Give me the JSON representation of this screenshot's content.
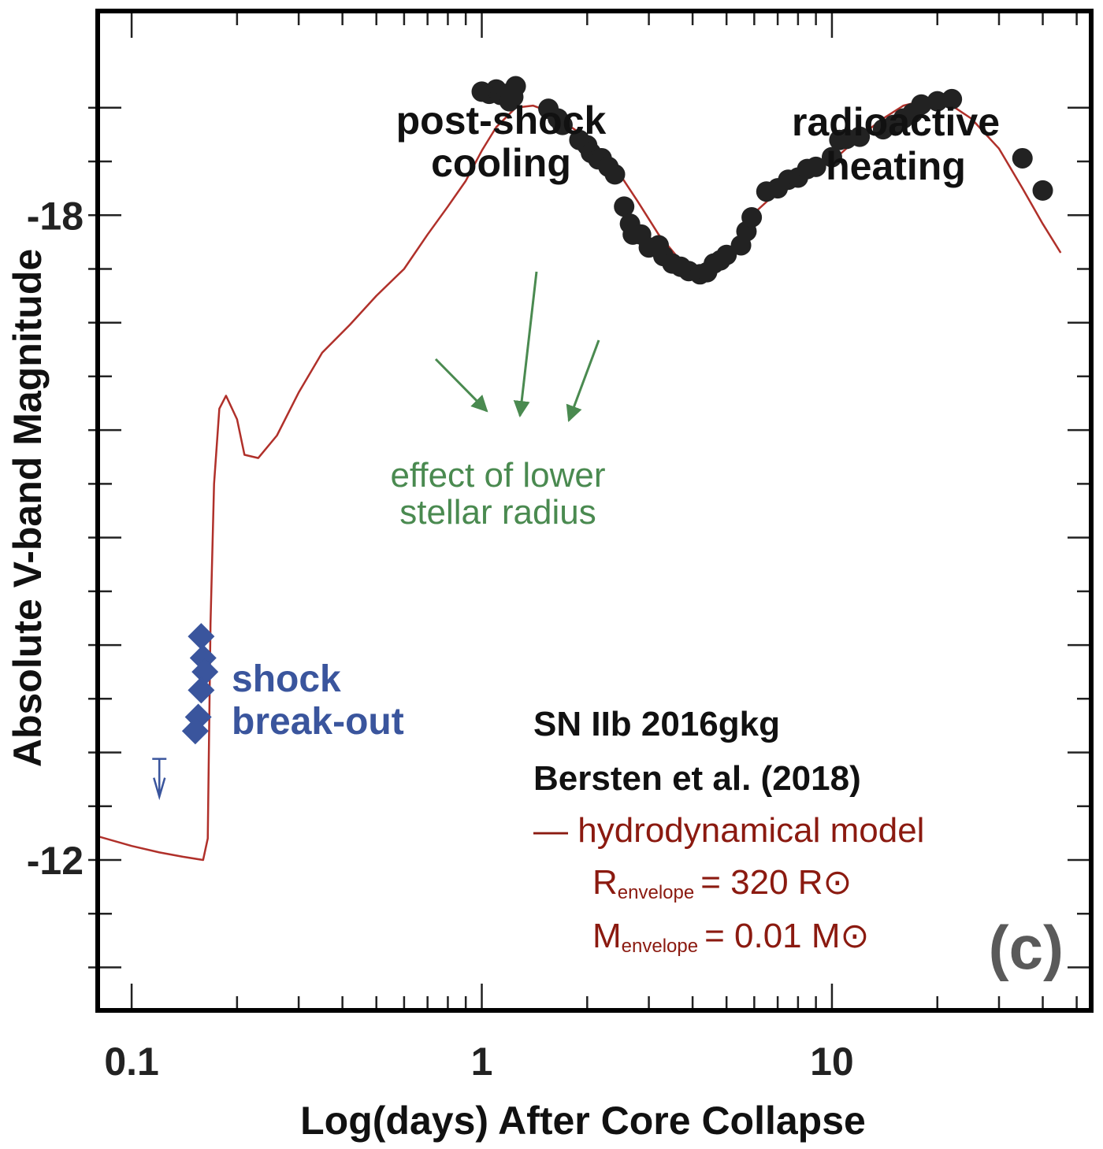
{
  "chart_data": {
    "type": "scatter",
    "title": "",
    "xlabel": "Log(days) After Core Collapse",
    "ylabel": "Absolute V-band Magnitude",
    "x_scale": "log",
    "xlim": [
      0.08,
      55
    ],
    "ylim": [
      -10.6,
      -19.9
    ],
    "x_ticks": [
      0.1,
      1,
      10
    ],
    "x_tick_labels": [
      "0.1",
      "1",
      "10"
    ],
    "y_ticks": [
      -18,
      -12
    ],
    "y_tick_labels": [
      "-18",
      "-12"
    ],
    "grid": false,
    "series": [
      {
        "name": "hydrodynamical model",
        "kind": "line",
        "color": "#b0302a",
        "points": [
          [
            0.08,
            -12.22
          ],
          [
            0.1,
            -12.13
          ],
          [
            0.12,
            -12.07
          ],
          [
            0.14,
            -12.03
          ],
          [
            0.16,
            -12.0
          ],
          [
            0.165,
            -12.2
          ],
          [
            0.168,
            -14.2
          ],
          [
            0.172,
            -15.5
          ],
          [
            0.178,
            -16.2
          ],
          [
            0.186,
            -16.32
          ],
          [
            0.2,
            -16.1
          ],
          [
            0.21,
            -15.77
          ],
          [
            0.23,
            -15.74
          ],
          [
            0.26,
            -15.95
          ],
          [
            0.3,
            -16.35
          ],
          [
            0.35,
            -16.72
          ],
          [
            0.42,
            -16.98
          ],
          [
            0.5,
            -17.25
          ],
          [
            0.6,
            -17.5
          ],
          [
            0.7,
            -17.82
          ],
          [
            0.8,
            -18.08
          ],
          [
            0.9,
            -18.32
          ],
          [
            1.0,
            -18.6
          ],
          [
            1.1,
            -18.82
          ],
          [
            1.25,
            -19.0
          ],
          [
            1.4,
            -19.02
          ],
          [
            1.6,
            -18.95
          ],
          [
            1.8,
            -18.82
          ],
          [
            2.0,
            -18.72
          ],
          [
            2.4,
            -18.45
          ],
          [
            2.8,
            -18.12
          ],
          [
            3.2,
            -17.82
          ],
          [
            3.6,
            -17.62
          ],
          [
            4.0,
            -17.52
          ],
          [
            4.5,
            -17.47
          ],
          [
            5.0,
            -17.56
          ],
          [
            5.5,
            -17.8
          ],
          [
            6.0,
            -18.02
          ],
          [
            7.0,
            -18.22
          ],
          [
            8.0,
            -18.32
          ],
          [
            9.0,
            -18.42
          ],
          [
            10.0,
            -18.5
          ],
          [
            12.0,
            -18.73
          ],
          [
            14.0,
            -18.9
          ],
          [
            16.0,
            -19.02
          ],
          [
            18.0,
            -19.06
          ],
          [
            20.0,
            -19.05
          ],
          [
            22.0,
            -19.02
          ],
          [
            25.0,
            -18.9
          ],
          [
            30.0,
            -18.62
          ],
          [
            35.0,
            -18.25
          ],
          [
            40.0,
            -17.92
          ],
          [
            45.0,
            -17.65
          ]
        ]
      },
      {
        "name": "",
        "kind": "scatter",
        "marker": "circle",
        "color": "#222222",
        "points": [
          [
            1.0,
            -19.15
          ],
          [
            1.05,
            -19.13
          ],
          [
            1.1,
            -19.17
          ],
          [
            1.13,
            -19.12
          ],
          [
            1.18,
            -19.13
          ],
          [
            1.2,
            -19.06
          ],
          [
            1.25,
            -19.2
          ],
          [
            1.23,
            -19.1
          ],
          [
            1.55,
            -18.99
          ],
          [
            1.65,
            -18.9
          ],
          [
            1.7,
            -18.84
          ],
          [
            1.9,
            -18.7
          ],
          [
            2.0,
            -18.65
          ],
          [
            2.05,
            -18.58
          ],
          [
            2.15,
            -18.52
          ],
          [
            2.2,
            -18.53
          ],
          [
            2.3,
            -18.45
          ],
          [
            2.4,
            -18.38
          ],
          [
            2.55,
            -18.08
          ],
          [
            2.65,
            -17.92
          ],
          [
            2.7,
            -17.82
          ],
          [
            2.85,
            -17.82
          ],
          [
            3.0,
            -17.7
          ],
          [
            3.2,
            -17.72
          ],
          [
            3.3,
            -17.62
          ],
          [
            3.5,
            -17.55
          ],
          [
            3.7,
            -17.52
          ],
          [
            3.9,
            -17.48
          ],
          [
            4.2,
            -17.45
          ],
          [
            4.4,
            -17.47
          ],
          [
            4.6,
            -17.55
          ],
          [
            4.8,
            -17.58
          ],
          [
            5.0,
            -17.63
          ],
          [
            5.5,
            -17.72
          ],
          [
            5.7,
            -17.85
          ],
          [
            5.9,
            -17.98
          ],
          [
            6.5,
            -18.22
          ],
          [
            7.0,
            -18.25
          ],
          [
            7.5,
            -18.33
          ],
          [
            8.0,
            -18.35
          ],
          [
            8.5,
            -18.43
          ],
          [
            9.0,
            -18.45
          ],
          [
            10.0,
            -18.54
          ],
          [
            10.5,
            -18.7
          ],
          [
            11.0,
            -18.71
          ],
          [
            12.0,
            -18.73
          ],
          [
            14.0,
            -18.8
          ],
          [
            15.0,
            -18.84
          ],
          [
            16.0,
            -18.9
          ],
          [
            17.0,
            -18.95
          ],
          [
            18.0,
            -19.03
          ],
          [
            20.0,
            -19.06
          ],
          [
            22.0,
            -19.08
          ],
          [
            35.0,
            -18.53
          ],
          [
            40.0,
            -18.23
          ]
        ]
      },
      {
        "name": "",
        "kind": "scatter",
        "marker": "diamond",
        "color": "#3a559d",
        "points": [
          [
            0.158,
            -14.08
          ],
          [
            0.16,
            -13.88
          ],
          [
            0.162,
            -13.75
          ],
          [
            0.158,
            -13.58
          ],
          [
            0.155,
            -13.33
          ],
          [
            0.152,
            -13.2
          ]
        ]
      },
      {
        "name": "",
        "kind": "upper_limit",
        "color": "#3a559d",
        "points": [
          [
            0.12,
            -12.75
          ]
        ]
      }
    ],
    "annotations": {
      "post_shock": [
        "post-shock",
        "cooling"
      ],
      "radioactive": [
        "radioactive",
        "heating"
      ],
      "lower_radius": [
        "effect of lower",
        "stellar radius"
      ],
      "breakout": [
        "shock",
        "break-out"
      ]
    },
    "legend": {
      "placement": "bottom-right",
      "line1": "SN IIb 2016gkg",
      "line2": "Bersten et al. (2018)",
      "model_label": "— hydrodynamical model",
      "r_main": "R",
      "r_sub": "envelope",
      "r_value": "= 320 R",
      "m_main": "M",
      "m_sub": "envelope",
      "m_value": "= 0.01 M",
      "sun_symbol": "⊙"
    },
    "panel_label": "(c)"
  }
}
